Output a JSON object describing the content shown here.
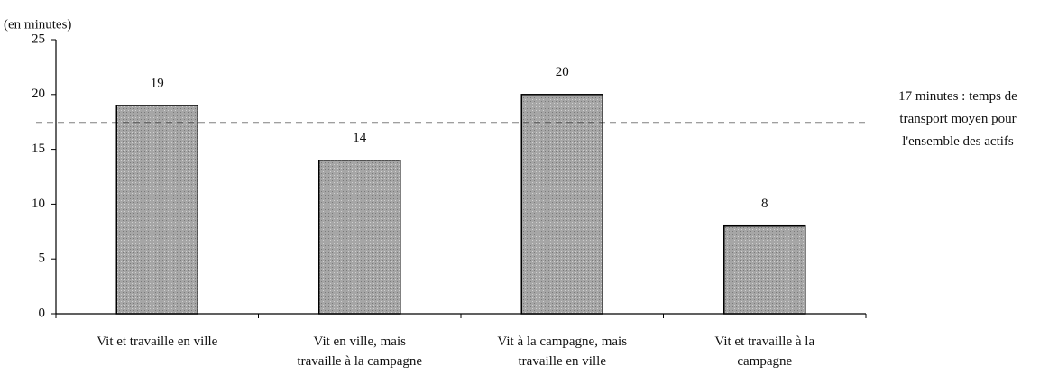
{
  "chart_data": {
    "type": "bar",
    "y_axis_label": "(en minutes)",
    "categories": [
      [
        "Vit et travaille en ville"
      ],
      [
        "Vit en ville, mais",
        "travaille à la campagne"
      ],
      [
        "Vit à la campagne, mais",
        "travaille en ville"
      ],
      [
        "Vit et travaille à la",
        "campagne"
      ]
    ],
    "values": [
      19,
      14,
      20,
      8
    ],
    "color": "#a6a6a6",
    "ylim": [
      0,
      25
    ],
    "yticks": [
      0,
      5,
      10,
      15,
      20,
      25
    ],
    "reference_line": {
      "value": 17.4,
      "label": [
        "17 minutes : temps de",
        "transport moyen pour",
        "l'ensemble des actifs"
      ]
    }
  }
}
